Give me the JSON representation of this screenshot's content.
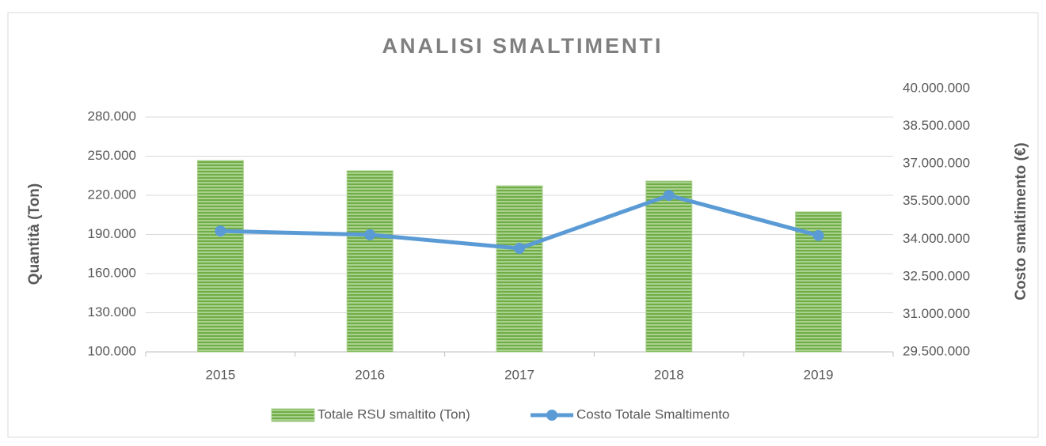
{
  "chart_data": {
    "type": "bar_line",
    "title": "ANALISI SMALTIMENTI",
    "y_label": "Quantità (Ton)",
    "y2_label": "Costo smaltimento (€)",
    "categories": [
      "2015",
      "2016",
      "2017",
      "2018",
      "2019"
    ],
    "series": [
      {
        "name": "Totale RSU smaltito (Ton)",
        "type": "bar",
        "color": "#70ad47",
        "values": [
          246700,
          238800,
          227300,
          230900,
          207300
        ]
      },
      {
        "name": "Costo Totale Smaltimento",
        "type": "line",
        "axis": "y2",
        "color": "#5b9bd5",
        "values": [
          34320000,
          34170000,
          33630000,
          35740000,
          34140000
        ]
      }
    ],
    "ylim": [
      100000,
      280000
    ],
    "yticks": [
      {
        "value": 100000,
        "label": "100.000"
      },
      {
        "value": 130000,
        "label": "130.000"
      },
      {
        "value": 160000,
        "label": "160.000"
      },
      {
        "value": 190000,
        "label": "190.000"
      },
      {
        "value": 220000,
        "label": "220.000"
      },
      {
        "value": 250000,
        "label": "250.000"
      },
      {
        "value": 280000,
        "label": "280.000"
      }
    ],
    "y2lim": [
      29500000,
      40000000
    ],
    "y2ticks": [
      {
        "value": 29500000,
        "label": "29.500.000"
      },
      {
        "value": 31000000,
        "label": "31.000.000"
      },
      {
        "value": 32500000,
        "label": "32.500.000"
      },
      {
        "value": 34000000,
        "label": "34.000.000"
      },
      {
        "value": 35500000,
        "label": "35.500.000"
      },
      {
        "value": 37000000,
        "label": "37.000.000"
      },
      {
        "value": 38500000,
        "label": "38.500.000"
      },
      {
        "value": 40000000,
        "label": "40.000.000"
      }
    ],
    "grid": true,
    "legend": "bottom"
  }
}
